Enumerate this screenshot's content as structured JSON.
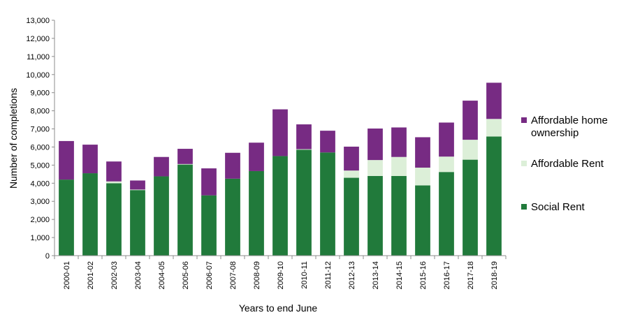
{
  "chart_data": {
    "type": "bar",
    "stacked": true,
    "categories": [
      "2000-01",
      "2001-02",
      "2002-03",
      "2003-04",
      "2004-05",
      "2005-06",
      "2006-07",
      "2007-08",
      "2008-09",
      "2009-10",
      "2010-11",
      "2011-12",
      "2012-13",
      "2013-14",
      "2014-15",
      "2015-16",
      "2016-17",
      "2017-18",
      "2018-19"
    ],
    "series": [
      {
        "name": "Social Rent",
        "color": "#217a3b",
        "values": [
          4200,
          4550,
          4000,
          3620,
          4380,
          5030,
          3330,
          4250,
          4670,
          5500,
          5850,
          5700,
          4300,
          4400,
          4400,
          3880,
          4620,
          5300,
          6580
        ]
      },
      {
        "name": "Affordable Rent",
        "color": "#dcefd8",
        "values": [
          0,
          0,
          100,
          30,
          0,
          30,
          0,
          0,
          0,
          0,
          30,
          0,
          400,
          880,
          1050,
          980,
          850,
          1100,
          970
        ]
      },
      {
        "name": "Affordable home ownership",
        "color": "#772b83",
        "values": [
          2130,
          1580,
          1100,
          500,
          1070,
          840,
          1490,
          1430,
          1570,
          2580,
          1370,
          1200,
          1320,
          1740,
          1630,
          1680,
          1880,
          2160,
          2000
        ]
      }
    ],
    "xlabel": "Years to end June",
    "ylabel": "Number of completions",
    "ylim": [
      0,
      13000
    ],
    "yticks": [
      0,
      1000,
      2000,
      3000,
      4000,
      5000,
      6000,
      7000,
      8000,
      9000,
      10000,
      11000,
      12000,
      13000
    ],
    "ytick_labels": [
      "0",
      "1,000",
      "2,000",
      "3,000",
      "4,000",
      "5,000",
      "6,000",
      "7,000",
      "8,000",
      "9,000",
      "10,000",
      "11,000",
      "12,000",
      "13,000"
    ],
    "legend": {
      "placement": "right",
      "entries": [
        {
          "lines": [
            "Affordable home",
            "ownership"
          ],
          "color": "#772b83"
        },
        {
          "lines": [
            "Affordable Rent"
          ],
          "color": "#dcefd8"
        },
        {
          "lines": [
            "Social Rent"
          ],
          "color": "#217a3b"
        }
      ]
    },
    "grid": false
  }
}
